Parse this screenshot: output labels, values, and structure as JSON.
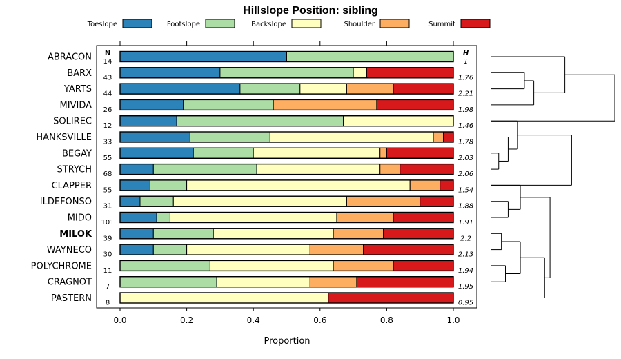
{
  "chart_data": {
    "type": "bar",
    "orientation": "horizontal",
    "stacked": true,
    "title": "Hillslope Position: sibling",
    "xlabel": "Proportion",
    "xlim": [
      0,
      1
    ],
    "xticks": [
      0.0,
      0.2,
      0.4,
      0.6,
      0.8,
      1.0
    ],
    "xtick_labels": [
      "0.0",
      "0.2",
      "0.4",
      "0.6",
      "0.8",
      "1.0"
    ],
    "legend_placement": "top",
    "legend": [
      {
        "name": "Toeslope",
        "color": "#2b83ba"
      },
      {
        "name": "Footslope",
        "color": "#abdda4"
      },
      {
        "name": "Backslope",
        "color": "#ffffbf"
      },
      {
        "name": "Shoulder",
        "color": "#fdae61"
      },
      {
        "name": "Summit",
        "color": "#d7191c"
      }
    ],
    "n_header": "N",
    "h_header": "H",
    "bold_category": "MILOK",
    "categories": [
      "ABRACON",
      "BARX",
      "YARTS",
      "MIVIDA",
      "SOLIREC",
      "HANKSVILLE",
      "BEGAY",
      "STRYCH",
      "CLAPPER",
      "ILDEFONSO",
      "MIDO",
      "MILOK",
      "WAYNECO",
      "POLYCHROME",
      "CRAGNOT",
      "PASTERN"
    ],
    "n": [
      "14",
      "43",
      "44",
      "26",
      "12",
      "33",
      "55",
      "68",
      "55",
      "31",
      "101",
      "39",
      "30",
      "11",
      "7",
      "8"
    ],
    "h": [
      "1",
      "1.76",
      "2.21",
      "1.98",
      "1.46",
      "1.78",
      "2.03",
      "2.06",
      "1.54",
      "1.88",
      "1.91",
      "2.2",
      "2.13",
      "1.94",
      "1.95",
      "0.95"
    ],
    "series": [
      {
        "name": "Toeslope",
        "values": [
          0.5,
          0.3,
          0.36,
          0.19,
          0.17,
          0.21,
          0.22,
          0.1,
          0.09,
          0.06,
          0.11,
          0.1,
          0.1,
          0.0,
          0.0,
          0.0
        ]
      },
      {
        "name": "Footslope",
        "values": [
          0.5,
          0.4,
          0.18,
          0.27,
          0.5,
          0.24,
          0.18,
          0.31,
          0.11,
          0.1,
          0.04,
          0.18,
          0.1,
          0.27,
          0.29,
          0.0
        ]
      },
      {
        "name": "Backslope",
        "values": [
          0.0,
          0.04,
          0.14,
          0.0,
          0.33,
          0.49,
          0.38,
          0.37,
          0.67,
          0.52,
          0.5,
          0.36,
          0.37,
          0.37,
          0.28,
          0.625
        ]
      },
      {
        "name": "Shoulder",
        "values": [
          0.0,
          0.0,
          0.14,
          0.31,
          0.0,
          0.03,
          0.02,
          0.06,
          0.09,
          0.22,
          0.17,
          0.15,
          0.16,
          0.18,
          0.14,
          0.0
        ]
      },
      {
        "name": "Summit",
        "values": [
          0.0,
          0.26,
          0.18,
          0.23,
          0.0,
          0.03,
          0.2,
          0.16,
          0.04,
          0.1,
          0.18,
          0.21,
          0.27,
          0.18,
          0.29,
          0.375
        ]
      }
    ],
    "dendrogram": {
      "position": "right",
      "merges": [
        {
          "rows": [
            "BEGAY",
            "STRYCH"
          ],
          "height": 0.3
        },
        {
          "rows": [
            "HANKSVILLE",
            "BEGAY+STRYCH"
          ],
          "height": 0.65
        },
        {
          "rows": [
            "SOLIREC",
            "HANKSVILLE+BEGAY+STRYCH"
          ],
          "height": 1.0
        },
        {
          "rows": [
            "BARX",
            "YARTS"
          ],
          "height": 1.25
        },
        {
          "rows": [
            "MIVIDA",
            "BARX+YARTS"
          ],
          "height": 1.6
        },
        {
          "rows": [
            "ABRACON",
            "MIVIDA+BARX+YARTS"
          ],
          "height": 2.75
        },
        {
          "rows": [
            "ILDEFONSO",
            "MIDO"
          ],
          "height": 0.65
        },
        {
          "rows": [
            "CLAPPER",
            "ILDEFONSO+MIDO"
          ],
          "height": 1.1
        },
        {
          "rows": [
            "MILOK",
            "WAYNECO"
          ],
          "height": 0.4
        },
        {
          "rows": [
            "POLYCHROME",
            "CRAGNOT"
          ],
          "height": 0.55
        },
        {
          "rows": [
            "MILOK+WAYNECO",
            "POLYCHROME+CRAGNOT"
          ],
          "height": 1.1
        },
        {
          "rows": [
            "MILOK+WAYNECO+POLYCHROME+CRAGNOT",
            "PASTERN"
          ],
          "height": 2.0
        },
        {
          "rows": [
            "CLAPPER+ILDEFONSO+MIDO",
            "MILOK+WAYNECO+POLYCHROME+CRAGNOT+PASTERN"
          ],
          "height": 2.2
        },
        {
          "rows": [
            "SOLIREC+HANKSVILLE+BEGAY+STRYCH",
            "CLAPPER+...+PASTERN"
          ],
          "height": 3.0
        },
        {
          "rows": [
            "ABRACON+MIVIDA+BARX+YARTS",
            "SOLIREC+...+PASTERN"
          ],
          "height": 4.6
        }
      ]
    }
  }
}
